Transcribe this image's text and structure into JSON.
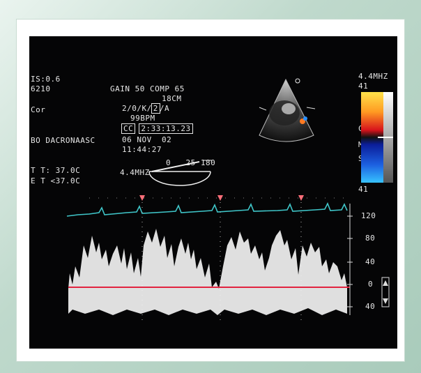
{
  "overlay": {
    "is_value": "IS:0.6",
    "id_number": "6210",
    "mode": "Cor",
    "label": "BO DACRONAASC",
    "temp_t": "T T: 37.0C",
    "temp_e": "E T <37.0C",
    "gain_comp": "GAIN 50 COMP 65",
    "depth": "18CM",
    "settings": "2/0/K/",
    "settings_boxed": "2",
    "settings_end": "/A",
    "bpm": "99BPM",
    "timer_label": "CC",
    "timer_value": "2:33:13.23",
    "date": "06 NOV  02",
    "time": "11:44:27",
    "probe_freq": "4.4MHZ",
    "angle_scale": "0   25 180",
    "colorbar_freq": "4.4MHZ",
    "colorbar_top": "41",
    "colorbar_bottom": "41",
    "colorbar_unit_c": "C",
    "colorbar_unit_m": "M",
    "colorbar_unit_s": "S",
    "velocity_scale": [
      "120",
      "80",
      "40",
      "0",
      "40"
    ],
    "colors": {
      "screen_bg": "#050506",
      "ecg_trace": "#3fc6c9",
      "doppler": "#f2f2f2",
      "baseline": "#e2233f",
      "marker": "#ff6f7a"
    }
  }
}
